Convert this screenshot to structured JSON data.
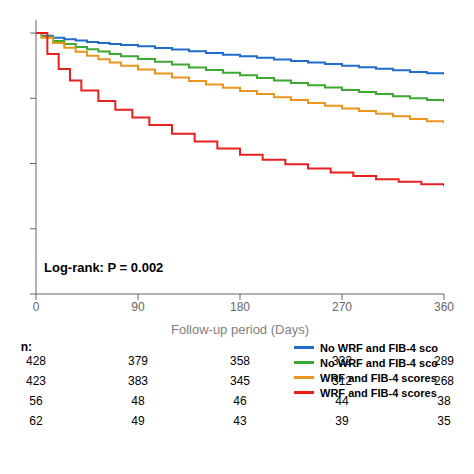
{
  "chart_data": {
    "type": "line",
    "line_style": "step",
    "xlabel": "Follow-up period (Days)",
    "xlim": [
      0,
      360
    ],
    "ylim": [
      0.0,
      1.05
    ],
    "xticks": [
      0,
      90,
      180,
      270,
      360
    ],
    "yticks": [
      0,
      0.25,
      0.5,
      0.75,
      1
    ],
    "tick_labels": "x",
    "grid": false,
    "legend": "lower right",
    "annotations": [
      "Log-rank: ",
      "P",
      " = 0.002"
    ],
    "at_risk": {
      "label": "n:",
      "x": [
        0,
        90,
        180,
        270,
        360
      ],
      "rows": [
        [
          428,
          379,
          358,
          332,
          289
        ],
        [
          423,
          383,
          345,
          312,
          268
        ],
        [
          56,
          48,
          46,
          44,
          38
        ],
        [
          62,
          49,
          43,
          39,
          35
        ]
      ]
    },
    "series": [
      {
        "name": "No WRF and FIB-4 sco",
        "color": "#1f6ccc",
        "x": [
          0,
          5,
          15,
          25,
          35,
          45,
          55,
          65,
          75,
          90,
          105,
          120,
          135,
          150,
          165,
          180,
          195,
          210,
          225,
          240,
          255,
          270,
          285,
          300,
          315,
          330,
          345,
          360
        ],
        "values": [
          1.0,
          0.99,
          0.982,
          0.976,
          0.971,
          0.966,
          0.962,
          0.958,
          0.954,
          0.949,
          0.943,
          0.937,
          0.93,
          0.924,
          0.917,
          0.911,
          0.905,
          0.899,
          0.893,
          0.887,
          0.881,
          0.875,
          0.869,
          0.863,
          0.857,
          0.851,
          0.846,
          0.841
        ]
      },
      {
        "name": "No WRF and FIB-4 sco",
        "color": "#3da832",
        "x": [
          0,
          5,
          15,
          25,
          35,
          45,
          55,
          65,
          75,
          90,
          105,
          120,
          135,
          150,
          165,
          180,
          195,
          210,
          225,
          240,
          255,
          270,
          285,
          300,
          315,
          330,
          345,
          360
        ],
        "values": [
          1.0,
          0.986,
          0.97,
          0.958,
          0.947,
          0.938,
          0.929,
          0.92,
          0.911,
          0.901,
          0.89,
          0.879,
          0.868,
          0.858,
          0.848,
          0.838,
          0.828,
          0.818,
          0.809,
          0.8,
          0.791,
          0.782,
          0.774,
          0.766,
          0.758,
          0.75,
          0.743,
          0.736
        ]
      },
      {
        "name": "WRF and FIB-4 scores",
        "color": "#e8961e",
        "x": [
          0,
          5,
          15,
          25,
          35,
          45,
          55,
          65,
          75,
          90,
          105,
          120,
          135,
          150,
          165,
          180,
          195,
          210,
          225,
          240,
          255,
          270,
          285,
          300,
          315,
          330,
          345,
          360
        ],
        "values": [
          1.0,
          0.982,
          0.962,
          0.944,
          0.928,
          0.913,
          0.9,
          0.887,
          0.875,
          0.86,
          0.845,
          0.83,
          0.816,
          0.803,
          0.79,
          0.778,
          0.766,
          0.754,
          0.743,
          0.732,
          0.721,
          0.711,
          0.701,
          0.691,
          0.681,
          0.671,
          0.662,
          0.653
        ]
      },
      {
        "name": "WRF and FIB-4 scores",
        "color": "#e82020",
        "x": [
          0,
          10,
          20,
          30,
          40,
          55,
          70,
          85,
          100,
          120,
          140,
          160,
          180,
          200,
          220,
          240,
          260,
          280,
          300,
          320,
          340,
          360
        ],
        "values": [
          1.0,
          0.92,
          0.862,
          0.818,
          0.78,
          0.74,
          0.706,
          0.676,
          0.648,
          0.614,
          0.584,
          0.558,
          0.534,
          0.514,
          0.497,
          0.481,
          0.466,
          0.452,
          0.44,
          0.43,
          0.421,
          0.413
        ]
      }
    ]
  }
}
